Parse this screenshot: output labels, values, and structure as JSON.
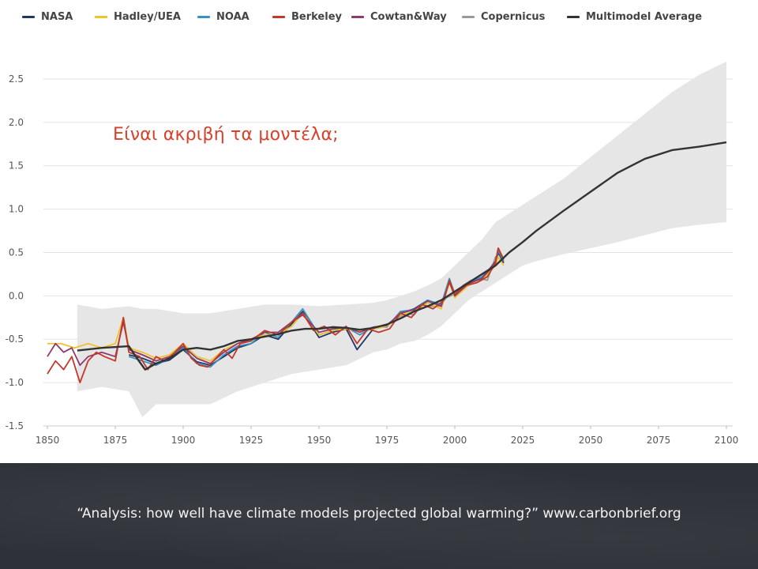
{
  "overlay_title": "Είναι ακριβή τα μοντέλα;",
  "footer_citation": "“Analysis: how well have climate models projected global warming?” www.carbonbrief.org",
  "colors": {
    "NASA": "#1f3864",
    "Hadley/UEA": "#f2c12e",
    "NOAA": "#3b8fc2",
    "Berkeley": "#c0392b",
    "Cowtan&Way": "#8e3a6e",
    "Copernicus": "#9a9a9a",
    "Multimodel Average": "#333333",
    "model_range": "#e6e6e6",
    "title": "#d8402a"
  },
  "chart_data": {
    "type": "line",
    "legend": [
      "NASA",
      "Hadley/UEA",
      "NOAA",
      "Berkeley",
      "Cowtan&Way",
      "Copernicus",
      "Multimodel Average"
    ],
    "legend_position": "top",
    "xlim": [
      1850,
      2100
    ],
    "ylim": [
      -1.5,
      2.6
    ],
    "xticks": [
      1850,
      1875,
      1900,
      1925,
      1950,
      1975,
      2000,
      2025,
      2050,
      2075,
      2100
    ],
    "yticks": [
      -1.5,
      -1.0,
      -0.5,
      0.0,
      0.5,
      1.0,
      1.5,
      2.0,
      2.5
    ],
    "ytick_labels": [
      "-1.5",
      "-1.0",
      "-0.5",
      "0.0",
      "0.5",
      "1.0",
      "1.5",
      "2.0",
      "2.5"
    ],
    "grid": "horizontal",
    "model_range": {
      "x": [
        1861,
        1870,
        1880,
        1885,
        1890,
        1900,
        1910,
        1920,
        1930,
        1940,
        1950,
        1960,
        1970,
        1975,
        1980,
        1985,
        1990,
        1995,
        2000,
        2005,
        2010,
        2015,
        2020,
        2025,
        2030,
        2040,
        2050,
        2060,
        2070,
        2080,
        2090,
        2100
      ],
      "upper": [
        -0.1,
        -0.15,
        -0.12,
        -0.15,
        -0.15,
        -0.2,
        -0.2,
        -0.15,
        -0.1,
        -0.1,
        -0.12,
        -0.1,
        -0.08,
        -0.05,
        0.0,
        0.05,
        0.12,
        0.2,
        0.35,
        0.5,
        0.65,
        0.85,
        0.95,
        1.05,
        1.15,
        1.35,
        1.6,
        1.85,
        2.1,
        2.35,
        2.55,
        2.7
      ],
      "lower": [
        -1.1,
        -1.05,
        -1.1,
        -1.4,
        -1.25,
        -1.25,
        -1.25,
        -1.1,
        -1.0,
        -0.9,
        -0.85,
        -0.8,
        -0.65,
        -0.62,
        -0.55,
        -0.52,
        -0.45,
        -0.35,
        -0.2,
        -0.05,
        0.05,
        0.15,
        0.25,
        0.35,
        0.4,
        0.48,
        0.55,
        0.62,
        0.7,
        0.78,
        0.82,
        0.85
      ]
    },
    "series": [
      {
        "name": "Multimodel Average",
        "x": [
          1861,
          1870,
          1880,
          1883,
          1886,
          1890,
          1895,
          1900,
          1905,
          1910,
          1915,
          1920,
          1925,
          1930,
          1935,
          1940,
          1945,
          1950,
          1955,
          1960,
          1965,
          1970,
          1975,
          1980,
          1985,
          1990,
          1995,
          2000,
          2005,
          2010,
          2015,
          2020,
          2025,
          2030,
          2040,
          2050,
          2060,
          2070,
          2080,
          2090,
          2100
        ],
        "y": [
          -0.63,
          -0.6,
          -0.58,
          -0.72,
          -0.85,
          -0.78,
          -0.72,
          -0.62,
          -0.6,
          -0.62,
          -0.58,
          -0.52,
          -0.5,
          -0.47,
          -0.44,
          -0.4,
          -0.38,
          -0.38,
          -0.36,
          -0.37,
          -0.39,
          -0.37,
          -0.33,
          -0.26,
          -0.18,
          -0.12,
          -0.05,
          0.05,
          0.15,
          0.25,
          0.35,
          0.5,
          0.62,
          0.75,
          0.98,
          1.2,
          1.42,
          1.58,
          1.68,
          1.72,
          1.77
        ]
      },
      {
        "name": "Copernicus",
        "x": [
          1979,
          1982,
          1985,
          1988,
          1991,
          1994,
          1997,
          2000,
          2003,
          2006,
          2009,
          2012,
          2015,
          2018
        ],
        "y": [
          -0.25,
          -0.2,
          -0.22,
          -0.1,
          -0.12,
          -0.12,
          -0.02,
          0.02,
          0.12,
          0.18,
          0.2,
          0.18,
          0.45,
          0.4
        ]
      },
      {
        "name": "NASA",
        "x": [
          1880,
          1885,
          1890,
          1895,
          1900,
          1905,
          1910,
          1915,
          1920,
          1925,
          1930,
          1935,
          1940,
          1944,
          1950,
          1955,
          1960,
          1964,
          1970,
          1975,
          1980,
          1985,
          1990,
          1995,
          1998,
          2000,
          2005,
          2010,
          2015,
          2016,
          2018
        ],
        "y": [
          -0.68,
          -0.72,
          -0.78,
          -0.74,
          -0.62,
          -0.76,
          -0.8,
          -0.7,
          -0.6,
          -0.55,
          -0.45,
          -0.5,
          -0.32,
          -0.18,
          -0.48,
          -0.42,
          -0.38,
          -0.62,
          -0.38,
          -0.35,
          -0.2,
          -0.15,
          -0.05,
          -0.12,
          0.18,
          0.0,
          0.15,
          0.2,
          0.35,
          0.5,
          0.38
        ]
      },
      {
        "name": "NOAA",
        "x": [
          1880,
          1885,
          1890,
          1895,
          1900,
          1905,
          1910,
          1915,
          1920,
          1925,
          1930,
          1935,
          1940,
          1944,
          1950,
          1955,
          1960,
          1965,
          1970,
          1975,
          1980,
          1985,
          1990,
          1995,
          1998,
          2000,
          2005,
          2010,
          2015,
          2016,
          2018
        ],
        "y": [
          -0.7,
          -0.75,
          -0.8,
          -0.72,
          -0.6,
          -0.78,
          -0.82,
          -0.68,
          -0.58,
          -0.55,
          -0.42,
          -0.48,
          -0.3,
          -0.15,
          -0.45,
          -0.4,
          -0.36,
          -0.45,
          -0.36,
          -0.36,
          -0.18,
          -0.16,
          -0.05,
          -0.1,
          0.2,
          0.02,
          0.14,
          0.22,
          0.38,
          0.52,
          0.4
        ]
      },
      {
        "name": "Hadley/UEA",
        "x": [
          1850,
          1855,
          1860,
          1865,
          1870,
          1875,
          1878,
          1880,
          1885,
          1890,
          1895,
          1900,
          1905,
          1910,
          1915,
          1920,
          1925,
          1930,
          1935,
          1940,
          1944,
          1950,
          1955,
          1960,
          1965,
          1970,
          1975,
          1980,
          1985,
          1990,
          1995,
          1998,
          2000,
          2005,
          2010,
          2015,
          2016,
          2018
        ],
        "y": [
          -0.55,
          -0.55,
          -0.6,
          -0.55,
          -0.6,
          -0.55,
          -0.25,
          -0.6,
          -0.65,
          -0.72,
          -0.68,
          -0.55,
          -0.7,
          -0.75,
          -0.62,
          -0.55,
          -0.5,
          -0.45,
          -0.45,
          -0.35,
          -0.2,
          -0.45,
          -0.4,
          -0.38,
          -0.4,
          -0.38,
          -0.35,
          -0.22,
          -0.18,
          -0.08,
          -0.15,
          0.15,
          -0.02,
          0.12,
          0.18,
          0.35,
          0.45,
          0.35
        ]
      },
      {
        "name": "Berkeley",
        "x": [
          1850,
          1853,
          1856,
          1859,
          1862,
          1865,
          1868,
          1871,
          1875,
          1878,
          1880,
          1884,
          1887,
          1890,
          1893,
          1896,
          1900,
          1903,
          1906,
          1909,
          1912,
          1915,
          1918,
          1921,
          1925,
          1930,
          1935,
          1940,
          1944,
          1948,
          1952,
          1956,
          1960,
          1964,
          1968,
          1972,
          1976,
          1980,
          1984,
          1988,
          1992,
          1996,
          1998,
          2000,
          2004,
          2008,
          2012,
          2015,
          2016,
          2018
        ],
        "y": [
          -0.9,
          -0.75,
          -0.85,
          -0.7,
          -1.0,
          -0.75,
          -0.65,
          -0.7,
          -0.75,
          -0.25,
          -0.65,
          -0.7,
          -0.85,
          -0.7,
          -0.75,
          -0.68,
          -0.55,
          -0.72,
          -0.8,
          -0.82,
          -0.72,
          -0.62,
          -0.72,
          -0.55,
          -0.52,
          -0.4,
          -0.45,
          -0.3,
          -0.2,
          -0.4,
          -0.35,
          -0.45,
          -0.35,
          -0.55,
          -0.38,
          -0.42,
          -0.38,
          -0.2,
          -0.25,
          -0.1,
          -0.15,
          -0.05,
          0.18,
          0.02,
          0.12,
          0.15,
          0.22,
          0.38,
          0.55,
          0.42
        ]
      },
      {
        "name": "Cowtan&Way",
        "x": [
          1850,
          1853,
          1856,
          1859,
          1862,
          1865,
          1870,
          1875,
          1878,
          1880,
          1885,
          1890,
          1895,
          1900,
          1905,
          1910,
          1915,
          1920,
          1925,
          1930,
          1935,
          1940,
          1944,
          1950,
          1955,
          1960,
          1965,
          1970,
          1975,
          1980,
          1985,
          1990,
          1995,
          1998,
          2000,
          2005,
          2010,
          2015,
          2016,
          2018
        ],
        "y": [
          -0.7,
          -0.55,
          -0.65,
          -0.6,
          -0.8,
          -0.7,
          -0.65,
          -0.7,
          -0.3,
          -0.62,
          -0.68,
          -0.75,
          -0.7,
          -0.58,
          -0.72,
          -0.78,
          -0.65,
          -0.55,
          -0.5,
          -0.42,
          -0.42,
          -0.3,
          -0.22,
          -0.42,
          -0.38,
          -0.36,
          -0.42,
          -0.36,
          -0.34,
          -0.2,
          -0.16,
          -0.06,
          -0.12,
          0.16,
          0.0,
          0.14,
          0.2,
          0.4,
          0.55,
          0.42
        ]
      }
    ]
  }
}
